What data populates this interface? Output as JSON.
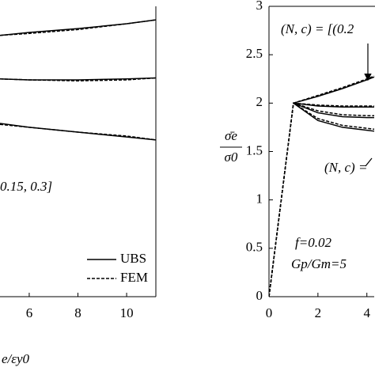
{
  "chart_data": [
    {
      "type": "line",
      "x_label": "e/εy0",
      "x": [
        4.8,
        6,
        8,
        10,
        11.2
      ],
      "xlim": [
        4.8,
        11.2
      ],
      "xticks": [
        6,
        8,
        10
      ],
      "ylim": [
        0,
        3
      ],
      "legend": "lower right",
      "annotations": [
        "0.15, 0.3]"
      ],
      "series": [
        {
          "name": "UBS",
          "color": "#000000",
          "style": "solid",
          "values": [
            2.7,
            2.73,
            2.77,
            2.82,
            2.86
          ]
        },
        {
          "name": "FEM",
          "color": "#000000",
          "style": "dashed",
          "values": [
            2.7,
            2.72,
            2.76,
            2.82,
            2.86
          ]
        },
        {
          "color": "#000000",
          "style": "solid",
          "values": [
            2.25,
            2.24,
            2.24,
            2.25,
            2.26
          ]
        },
        {
          "color": "#000000",
          "style": "dashed",
          "values": [
            2.25,
            2.24,
            2.23,
            2.24,
            2.26
          ]
        },
        {
          "color": "#000000",
          "style": "solid",
          "values": [
            1.79,
            1.75,
            1.7,
            1.65,
            1.62
          ]
        },
        {
          "color": "#000000",
          "style": "dashed",
          "values": [
            1.78,
            1.75,
            1.7,
            1.66,
            1.62
          ]
        }
      ]
    },
    {
      "type": "line",
      "y_label_top": "σ̄e",
      "y_label_bottom": "σ0",
      "x": [
        0,
        1,
        2,
        3,
        4,
        4.3
      ],
      "xlim": [
        0,
        4.3
      ],
      "xticks": [
        0,
        2,
        4
      ],
      "ylim": [
        0,
        3
      ],
      "yticks": [
        0,
        0.5,
        1,
        1.5,
        2,
        2.5,
        3
      ],
      "annotations": [
        "(N, c) = [(0.2",
        "(N, c) =",
        "f=0.02",
        "Gp/Gm=5"
      ],
      "series": [
        {
          "color": "#000000",
          "style": "solid",
          "values": [
            null,
            2,
            2.07,
            2.15,
            2.24,
            2.27
          ]
        },
        {
          "color": "#000000",
          "style": "dashed",
          "values": [
            0,
            2,
            2.08,
            2.16,
            2.25,
            2.28
          ]
        },
        {
          "color": "#000000",
          "style": "solid",
          "values": [
            null,
            2,
            1.97,
            1.96,
            1.96,
            1.96
          ]
        },
        {
          "color": "#000000",
          "style": "dashed",
          "values": [
            0,
            2,
            1.98,
            1.97,
            1.97,
            1.97
          ]
        },
        {
          "color": "#000000",
          "style": "solid",
          "values": [
            null,
            2,
            1.9,
            1.86,
            1.85,
            1.85
          ]
        },
        {
          "color": "#000000",
          "style": "dashed",
          "values": [
            0,
            2,
            1.92,
            1.88,
            1.87,
            1.87
          ]
        },
        {
          "color": "#000000",
          "style": "solid",
          "values": [
            null,
            2,
            1.82,
            1.75,
            1.72,
            1.71
          ]
        },
        {
          "color": "#000000",
          "style": "dashed",
          "values": [
            0,
            2,
            1.84,
            1.77,
            1.74,
            1.73
          ]
        }
      ]
    }
  ]
}
